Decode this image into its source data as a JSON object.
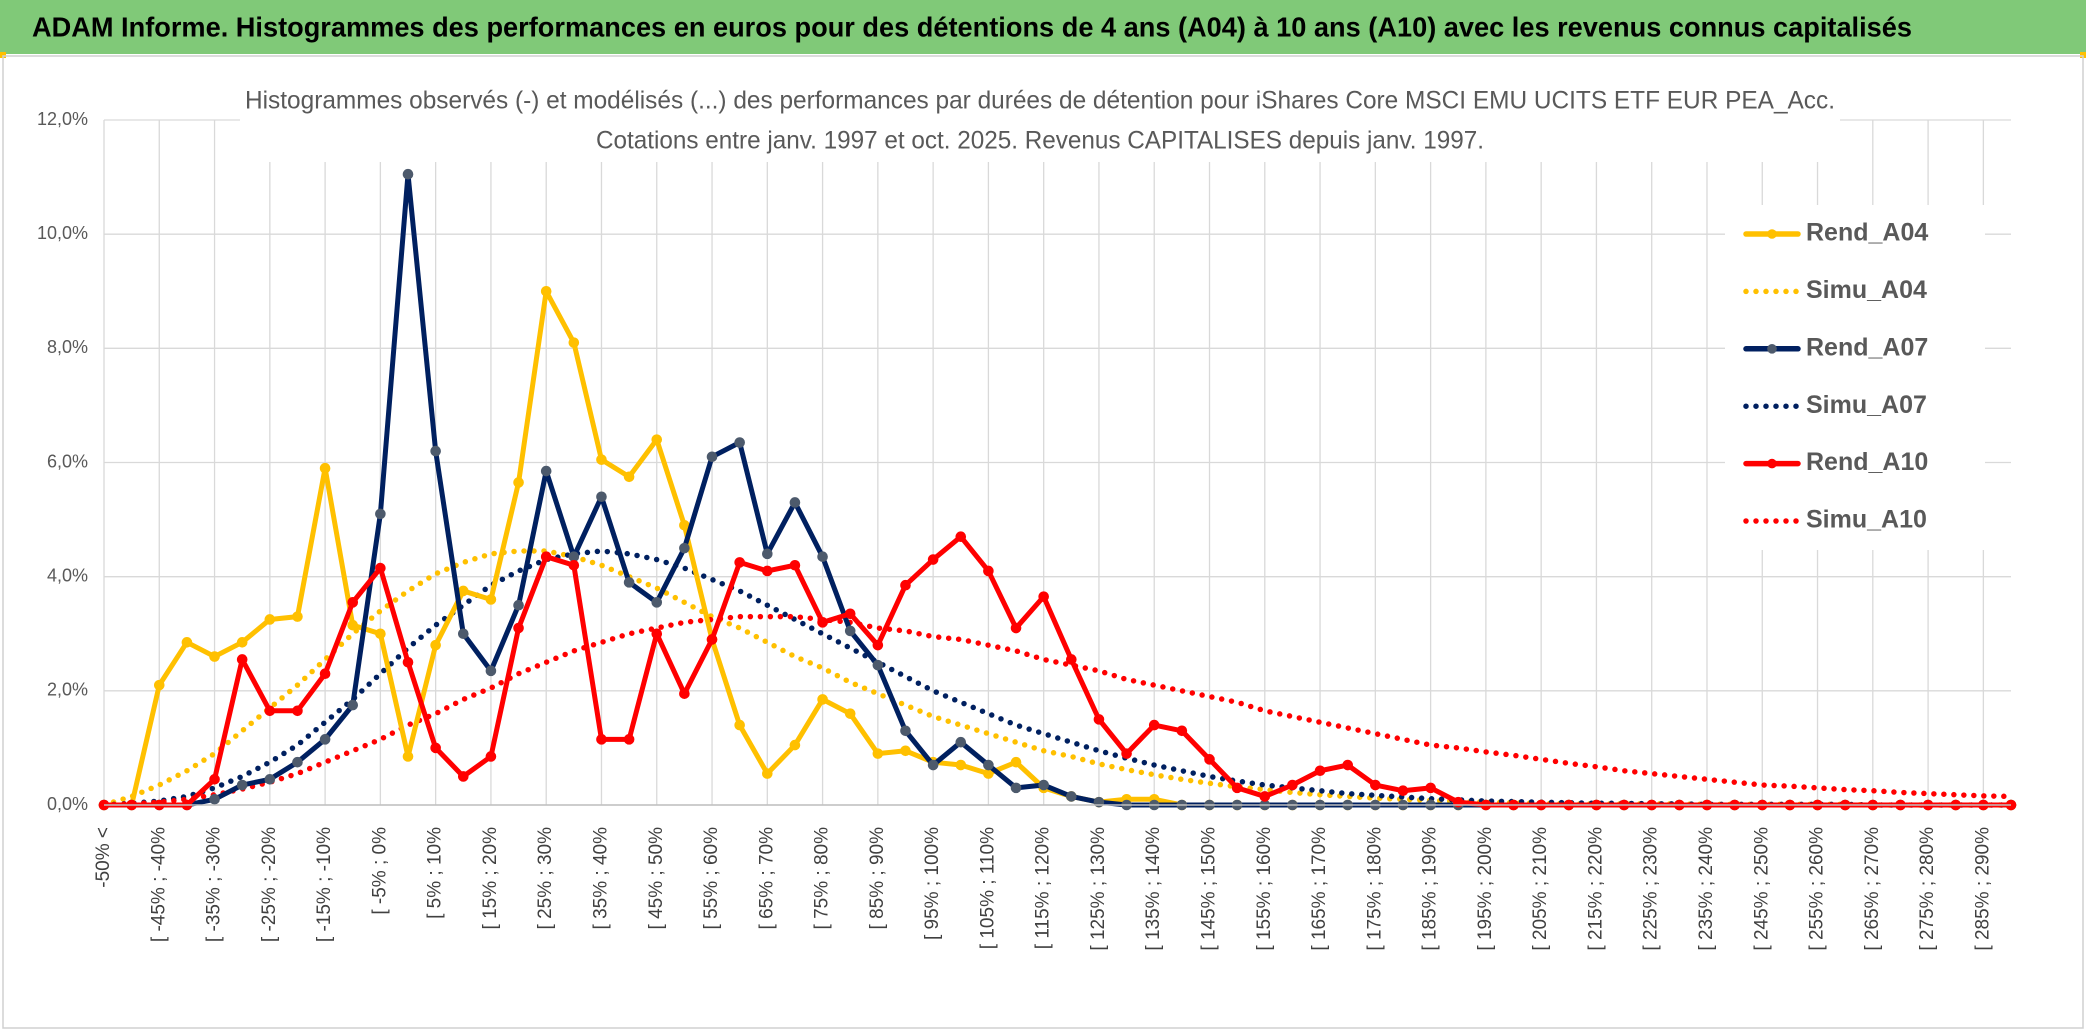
{
  "page_title": "ADAM Informe. Histogrammes des performances en euros pour des détentions de 4 ans (A04) à 10 ans (A10) avec les revenus connus capitalisés",
  "chart_data": {
    "type": "line",
    "title": "Histogrammes observés (-) et modélisés (...) des performances par durées de détention pour iShares Core MSCI EMU UCITS ETF EUR PEA_Acc.",
    "subtitle": "Cotations entre janv. 1997 et oct. 2025. Revenus CAPITALISES depuis janv. 1997.",
    "categories": [
      "-50% <",
      null,
      "[ -45% ; -40%",
      null,
      "[ -35% ; -30%",
      null,
      "[ -25% ; -20%",
      null,
      "[ -15% ; -10%",
      null,
      "[ -5% ; 0%",
      null,
      "[ 5% ; 10%",
      null,
      "[ 15% ; 20%",
      null,
      "[ 25% ; 30%",
      null,
      "[ 35% ; 40%",
      null,
      "[ 45% ; 50%",
      null,
      "[ 55% ; 60%",
      null,
      "[ 65% ; 70%",
      null,
      "[ 75% ; 80%",
      null,
      "[ 85% ; 90%",
      null,
      "[ 95% ; 100%",
      null,
      "[ 105% ; 110%",
      null,
      "[ 115% ; 120%",
      null,
      "[ 125% ; 130%",
      null,
      "[ 135% ; 140%",
      null,
      "[ 145% ; 150%",
      null,
      "[ 155% ; 160%",
      null,
      "[ 165% ; 170%",
      null,
      "[ 175% ; 180%",
      null,
      "[ 185% ; 190%",
      null,
      "[ 195% ; 200%",
      null,
      "[ 205% ; 210%",
      null,
      "[ 215% ; 220%",
      null,
      "[ 225% ; 230%",
      null,
      "[ 235% ; 240%",
      null,
      "[ 245% ; 250%",
      null,
      "[ 255% ; 260%",
      null,
      "[ 265% ; 270%",
      null,
      "[ 275% ; 280%",
      null,
      "[ 285% ; 290%",
      null
    ],
    "series": [
      {
        "name": "Rend_A04",
        "color": "#ffc000",
        "style": "solid",
        "markers": true,
        "marker_color": "#ffc000",
        "values": [
          0,
          0,
          2.1,
          2.85,
          2.6,
          2.85,
          3.25,
          3.3,
          5.9,
          3.15,
          3.0,
          0.85,
          2.8,
          3.75,
          3.6,
          5.65,
          9.0,
          8.1,
          6.05,
          5.75,
          6.4,
          4.9,
          2.9,
          1.4,
          0.55,
          1.05,
          1.85,
          1.6,
          0.9,
          0.95,
          0.75,
          0.7,
          0.55,
          0.75,
          0.3,
          0.15,
          0.05,
          0.1,
          0.1,
          0,
          0,
          0,
          0,
          0,
          0,
          0,
          0,
          0,
          0,
          0,
          0,
          0,
          0,
          0,
          0,
          0,
          0,
          0,
          0,
          0,
          0,
          0,
          0,
          0,
          0,
          0,
          0,
          0,
          0,
          0
        ]
      },
      {
        "name": "Simu_A04",
        "color": "#ffc000",
        "style": "dotted",
        "markers": false,
        "values": [
          0,
          0.15,
          0.35,
          0.6,
          0.9,
          1.3,
          1.7,
          2.1,
          2.55,
          3.0,
          3.4,
          3.75,
          4.05,
          4.25,
          4.4,
          4.45,
          4.45,
          4.35,
          4.2,
          4.0,
          3.8,
          3.55,
          3.3,
          3.1,
          2.85,
          2.6,
          2.4,
          2.15,
          1.95,
          1.75,
          1.55,
          1.4,
          1.25,
          1.1,
          0.95,
          0.85,
          0.72,
          0.62,
          0.53,
          0.45,
          0.38,
          0.32,
          0.27,
          0.22,
          0.18,
          0.15,
          0.12,
          0.1,
          0.08,
          0.06,
          0.05,
          0.04,
          0.03,
          0.02,
          0.02,
          0.02,
          0.02,
          0.02,
          0.01,
          0.01,
          0.01,
          0.01,
          0.01,
          0.01,
          0,
          0,
          0,
          0,
          0,
          0
        ]
      },
      {
        "name": "Rend_A07",
        "color": "#002060",
        "style": "solid",
        "markers": true,
        "marker_color": "#4d5a6c",
        "values": [
          0,
          0,
          0,
          0,
          0.1,
          0.35,
          0.45,
          0.75,
          1.15,
          1.75,
          5.1,
          11.05,
          6.2,
          3.0,
          2.35,
          3.5,
          5.85,
          4.35,
          5.4,
          3.9,
          3.55,
          4.5,
          6.1,
          6.35,
          4.4,
          5.3,
          4.35,
          3.05,
          2.45,
          1.3,
          0.7,
          1.1,
          0.7,
          0.3,
          0.35,
          0.15,
          0.05,
          0,
          0,
          0,
          0,
          0,
          0,
          0,
          0,
          0,
          0,
          0,
          0,
          0,
          0,
          0,
          0,
          0,
          0,
          0,
          0,
          0,
          0,
          0,
          0,
          0,
          0,
          0,
          0,
          0,
          0,
          0,
          0,
          0
        ]
      },
      {
        "name": "Simu_A07",
        "color": "#002060",
        "style": "dotted",
        "markers": false,
        "values": [
          0,
          0.03,
          0.07,
          0.15,
          0.3,
          0.5,
          0.75,
          1.05,
          1.45,
          1.85,
          2.3,
          2.75,
          3.15,
          3.5,
          3.85,
          4.1,
          4.3,
          4.4,
          4.45,
          4.4,
          4.3,
          4.15,
          3.95,
          3.75,
          3.5,
          3.25,
          3.0,
          2.75,
          2.5,
          2.25,
          2.0,
          1.8,
          1.6,
          1.4,
          1.25,
          1.1,
          0.95,
          0.82,
          0.7,
          0.6,
          0.5,
          0.42,
          0.35,
          0.3,
          0.25,
          0.2,
          0.17,
          0.14,
          0.11,
          0.09,
          0.07,
          0.06,
          0.05,
          0.04,
          0.03,
          0.03,
          0.02,
          0.02,
          0.01,
          0.01,
          0.01,
          0.01,
          0.01,
          0.01,
          0,
          0,
          0,
          0,
          0,
          0
        ]
      },
      {
        "name": "Rend_A10",
        "color": "#ff0000",
        "style": "solid",
        "markers": true,
        "marker_color": "#ff0000",
        "values": [
          0,
          0,
          0,
          0,
          0.45,
          2.55,
          1.65,
          1.65,
          2.3,
          3.55,
          4.15,
          2.5,
          1.0,
          0.5,
          0.85,
          3.1,
          4.35,
          4.2,
          1.15,
          1.15,
          3.0,
          1.95,
          2.9,
          4.25,
          4.1,
          4.2,
          3.2,
          3.35,
          2.8,
          3.85,
          4.3,
          4.7,
          4.1,
          3.1,
          3.65,
          2.55,
          1.5,
          0.9,
          1.4,
          1.3,
          0.8,
          0.3,
          0.15,
          0.35,
          0.6,
          0.7,
          0.35,
          0.25,
          0.3,
          0.05,
          0,
          0,
          0,
          0,
          0,
          0,
          0,
          0,
          0,
          0,
          0,
          0,
          0,
          0,
          0,
          0,
          0,
          0,
          0,
          0
        ]
      },
      {
        "name": "Simu_A10",
        "color": "#ff0000",
        "style": "dotted",
        "markers": false,
        "values": [
          0,
          0.02,
          0.05,
          0.1,
          0.18,
          0.28,
          0.4,
          0.55,
          0.75,
          0.95,
          1.15,
          1.4,
          1.6,
          1.85,
          2.05,
          2.3,
          2.5,
          2.7,
          2.85,
          3.0,
          3.1,
          3.2,
          3.25,
          3.3,
          3.3,
          3.3,
          3.25,
          3.2,
          3.1,
          3.05,
          2.95,
          2.9,
          2.8,
          2.7,
          2.55,
          2.45,
          2.35,
          2.2,
          2.1,
          2.0,
          1.9,
          1.8,
          1.65,
          1.55,
          1.45,
          1.35,
          1.25,
          1.15,
          1.05,
          1.0,
          0.93,
          0.87,
          0.8,
          0.73,
          0.67,
          0.6,
          0.55,
          0.5,
          0.45,
          0.4,
          0.35,
          0.33,
          0.3,
          0.27,
          0.25,
          0.22,
          0.2,
          0.18,
          0.16,
          0.15
        ]
      }
    ],
    "ylim": [
      0,
      12
    ],
    "yticks": [
      {
        "value": 0,
        "label": "0,0%"
      },
      {
        "value": 2,
        "label": "2,0%"
      },
      {
        "value": 4,
        "label": "4,0%"
      },
      {
        "value": 6,
        "label": "6,0%"
      },
      {
        "value": 8,
        "label": "8,0%"
      },
      {
        "value": 10,
        "label": "10,0%"
      },
      {
        "value": 12,
        "label": "12,0%"
      }
    ],
    "grid": true,
    "legend": "right"
  }
}
